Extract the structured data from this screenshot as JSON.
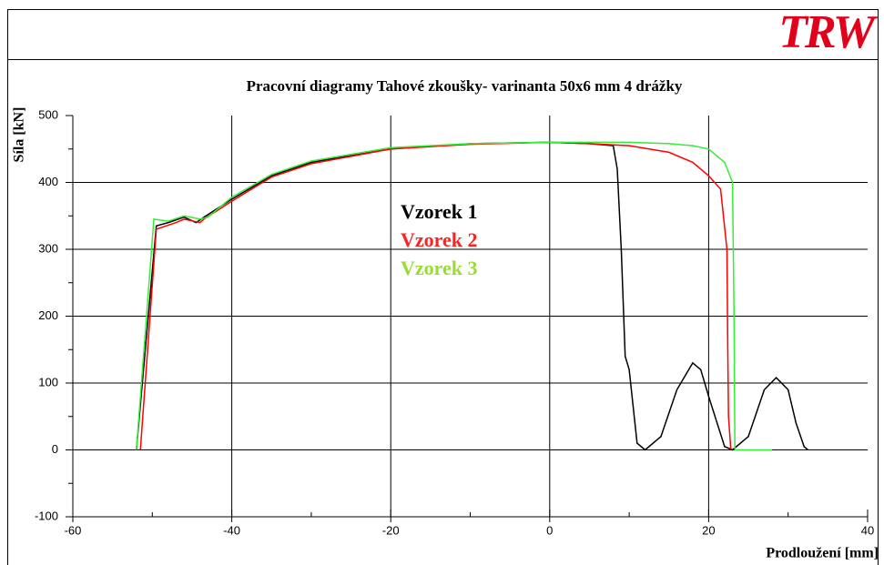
{
  "chart_data": {
    "type": "line",
    "logo": "TRW",
    "title": "Pracovní diagramy Tahové zkoušky- varinanta 50x6 mm 4 drážky",
    "y_label": "Síla [kN]",
    "x_label": "Prodloužení [mm]",
    "xlim": [
      -60,
      40
    ],
    "xticks": [
      -60,
      -40,
      -20,
      0,
      20,
      40
    ],
    "ylim": [
      -100,
      500
    ],
    "yticks": [
      -100,
      0,
      100,
      200,
      300,
      400,
      500
    ],
    "grid": true,
    "series": [
      {
        "name": "Vzorek 1",
        "color": "#000000",
        "label_color": "#000000",
        "x": [
          -52,
          -49.5,
          -48,
          -46,
          -44.5,
          -43.5,
          -40,
          -35,
          -30,
          -20,
          -10,
          0,
          5,
          8,
          8.5,
          9,
          9.5,
          10,
          11,
          12,
          14,
          16,
          18,
          19,
          20,
          22,
          23,
          25,
          27,
          28.5,
          30,
          31,
          32,
          32.5
        ],
        "values": [
          0,
          335,
          340,
          348,
          340,
          348,
          375,
          410,
          430,
          450,
          458,
          460,
          458,
          455,
          420,
          300,
          140,
          120,
          10,
          0,
          20,
          90,
          130,
          120,
          80,
          5,
          0,
          20,
          90,
          108,
          90,
          40,
          5,
          0
        ]
      },
      {
        "name": "Vzorek 2",
        "color": "#ff0000",
        "label_color": "#ff2020",
        "x": [
          -51.5,
          -49.5,
          -47,
          -46,
          -44,
          -43.5,
          -40,
          -35,
          -30,
          -20,
          -10,
          0,
          5,
          10,
          15,
          18,
          20,
          21.5,
          22.3,
          22.4,
          22.5,
          22.8
        ],
        "values": [
          0,
          330,
          340,
          345,
          340,
          345,
          372,
          408,
          428,
          450,
          457,
          460,
          458,
          455,
          445,
          430,
          410,
          390,
          300,
          150,
          50,
          0
        ]
      },
      {
        "name": "Vzorek 3",
        "color": "#33ee33",
        "label_color": "#99dd33",
        "x": [
          -52,
          -49.8,
          -48,
          -46,
          -44,
          -43,
          -40,
          -35,
          -30,
          -20,
          -10,
          0,
          10,
          15,
          18,
          20,
          22,
          23,
          23.2,
          23.3,
          28
        ],
        "values": [
          0,
          345,
          342,
          350,
          345,
          348,
          378,
          412,
          432,
          452,
          458,
          460,
          460,
          458,
          455,
          450,
          430,
          400,
          200,
          0,
          0
        ]
      }
    ]
  }
}
